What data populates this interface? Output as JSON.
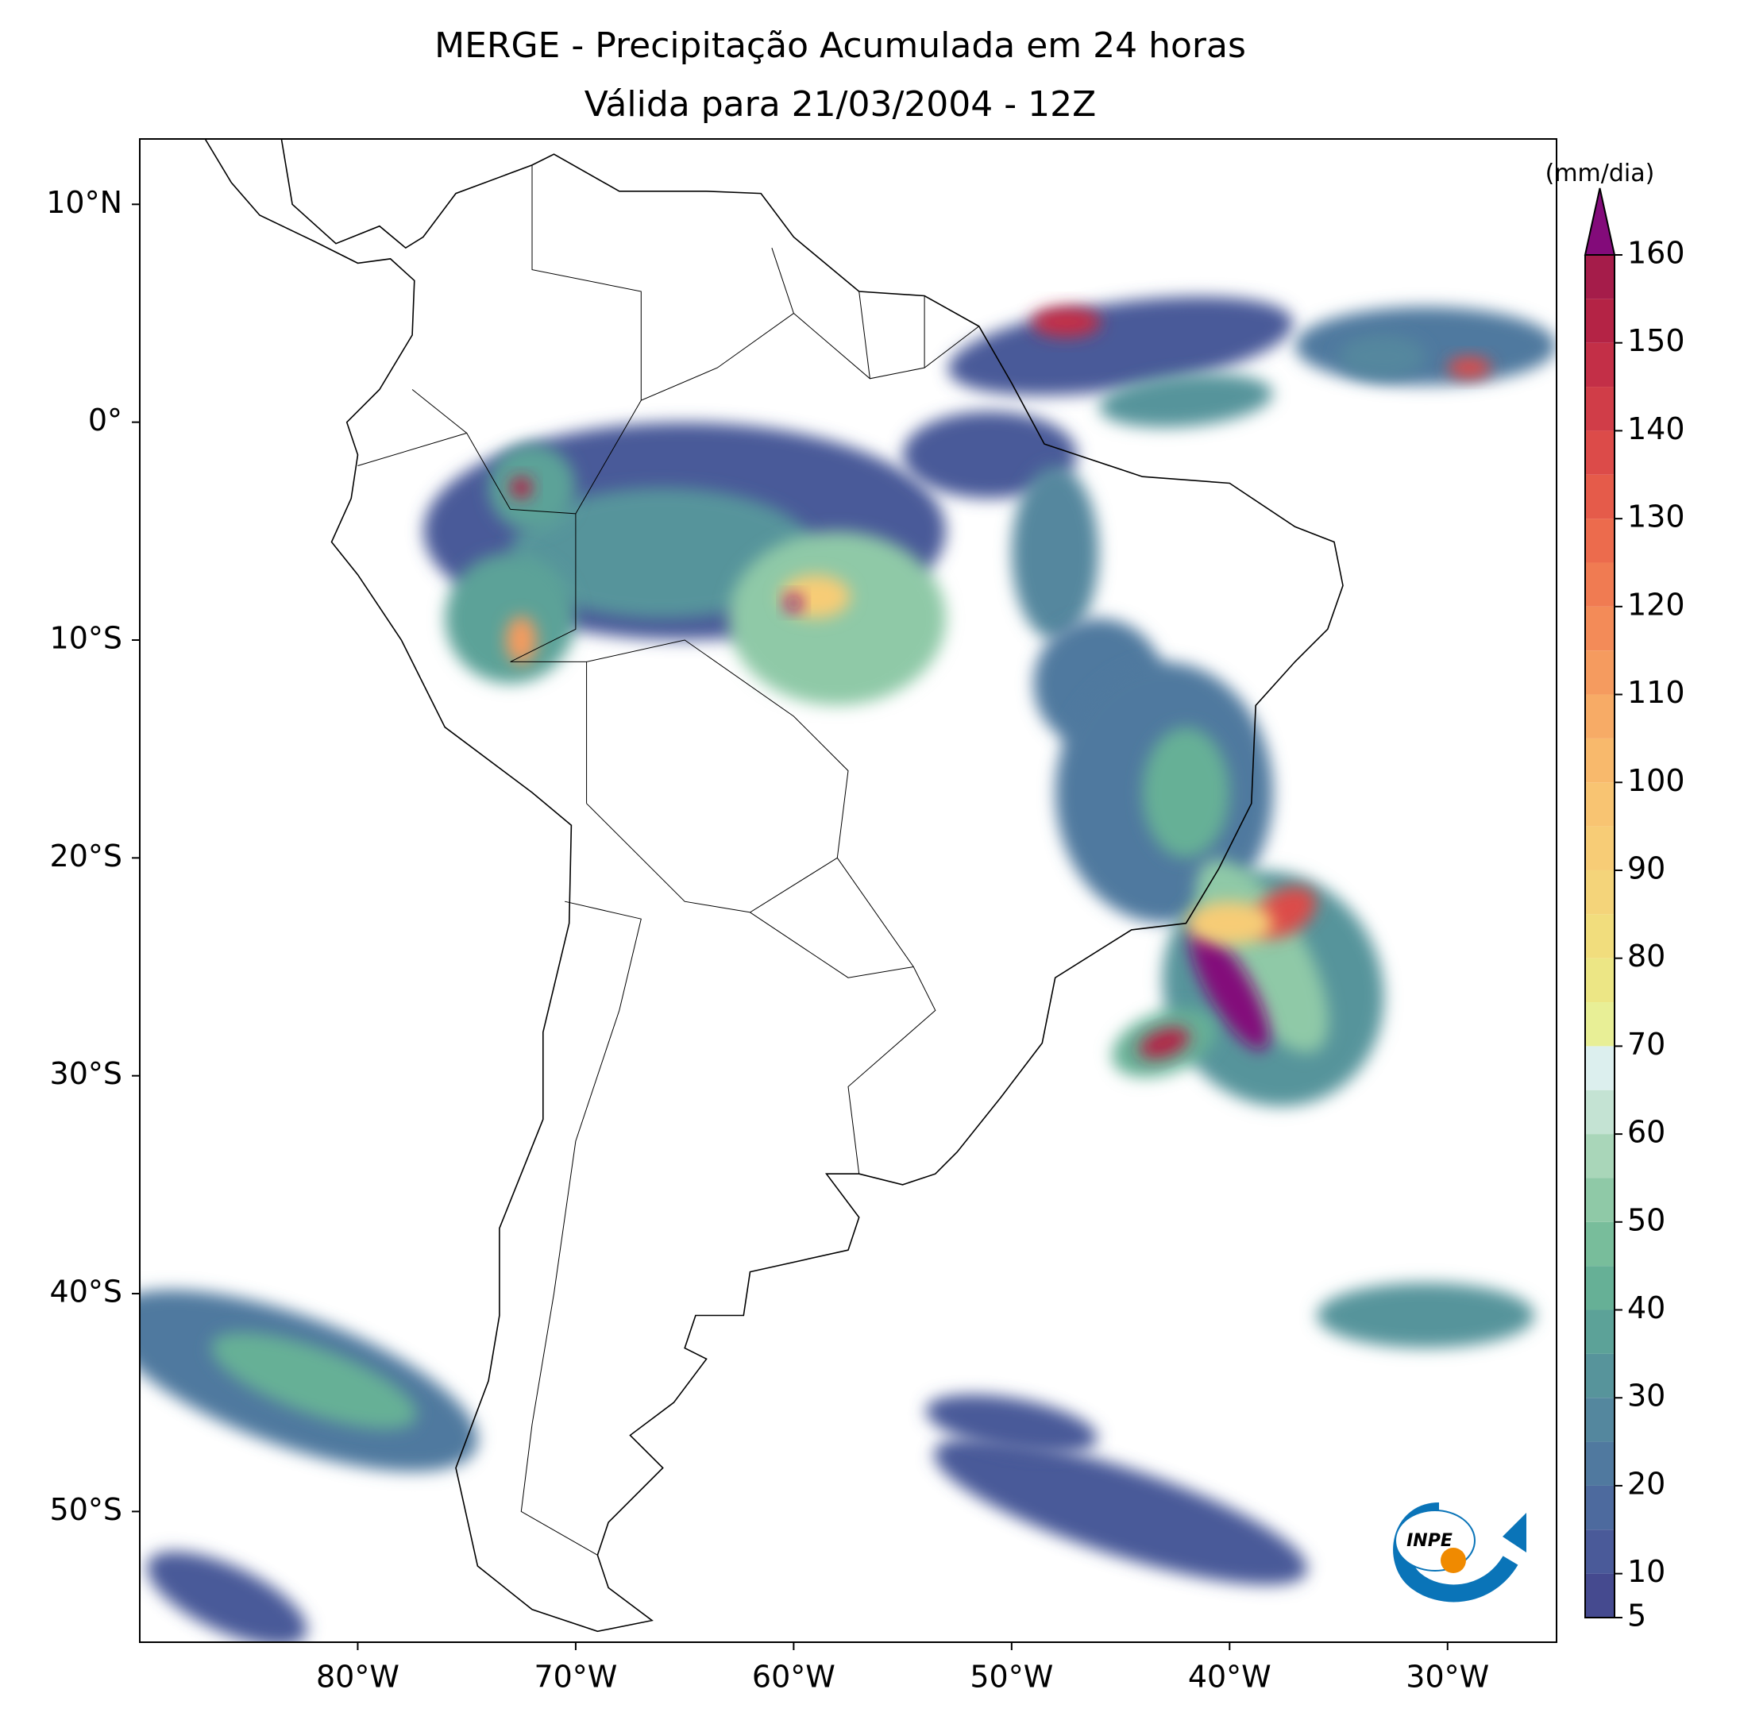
{
  "title": [
    "MERGE - Precipitação Acumulada em 24 horas",
    "Válida para 21/03/2004 - 12Z"
  ],
  "map": {
    "xlim": [
      -90,
      -25
    ],
    "ylim": [
      -56,
      13
    ],
    "xticks": [
      {
        "value": -80,
        "label": "80°W"
      },
      {
        "value": -70,
        "label": "70°W"
      },
      {
        "value": -60,
        "label": "60°W"
      },
      {
        "value": -50,
        "label": "50°W"
      },
      {
        "value": -40,
        "label": "40°W"
      },
      {
        "value": -30,
        "label": "30°W"
      }
    ],
    "yticks": [
      {
        "value": 10,
        "label": "10°N"
      },
      {
        "value": 0,
        "label": "0°"
      },
      {
        "value": -10,
        "label": "10°S"
      },
      {
        "value": -20,
        "label": "20°S"
      },
      {
        "value": -30,
        "label": "30°S"
      },
      {
        "value": -40,
        "label": "40°S"
      },
      {
        "value": -50,
        "label": "50°S"
      }
    ]
  },
  "colorbar": {
    "label": "(mm/dia)",
    "levels": [
      5,
      10,
      15,
      20,
      25,
      30,
      35,
      40,
      45,
      50,
      55,
      60,
      65,
      70,
      75,
      80,
      85,
      90,
      95,
      100,
      105,
      110,
      115,
      120,
      125,
      130,
      135,
      140,
      145,
      150,
      155,
      160
    ],
    "colors": [
      "#454a8f",
      "#4a5a99",
      "#4d6a9e",
      "#50799f",
      "#54879e",
      "#57949b",
      "#5ca298",
      "#66b096",
      "#78bd9b",
      "#8fc9a7",
      "#a9d6b9",
      "#c4e3d3",
      "#dcefee",
      "#e8ef96",
      "#ece685",
      "#f1dd7d",
      "#f4d47a",
      "#f7cc76",
      "#f8c472",
      "#f8b96c",
      "#f7ab66",
      "#f59b5f",
      "#f38b58",
      "#f07b52",
      "#ec6b4d",
      "#e55b4a",
      "#dc4b49",
      "#d03d48",
      "#c32f47",
      "#b42345",
      "#a51c4a"
    ],
    "extend_color": "#830b7a",
    "ticks": [
      5,
      10,
      20,
      30,
      40,
      50,
      60,
      70,
      80,
      90,
      100,
      110,
      120,
      130,
      140,
      150,
      160
    ]
  },
  "logo": "INPE"
}
